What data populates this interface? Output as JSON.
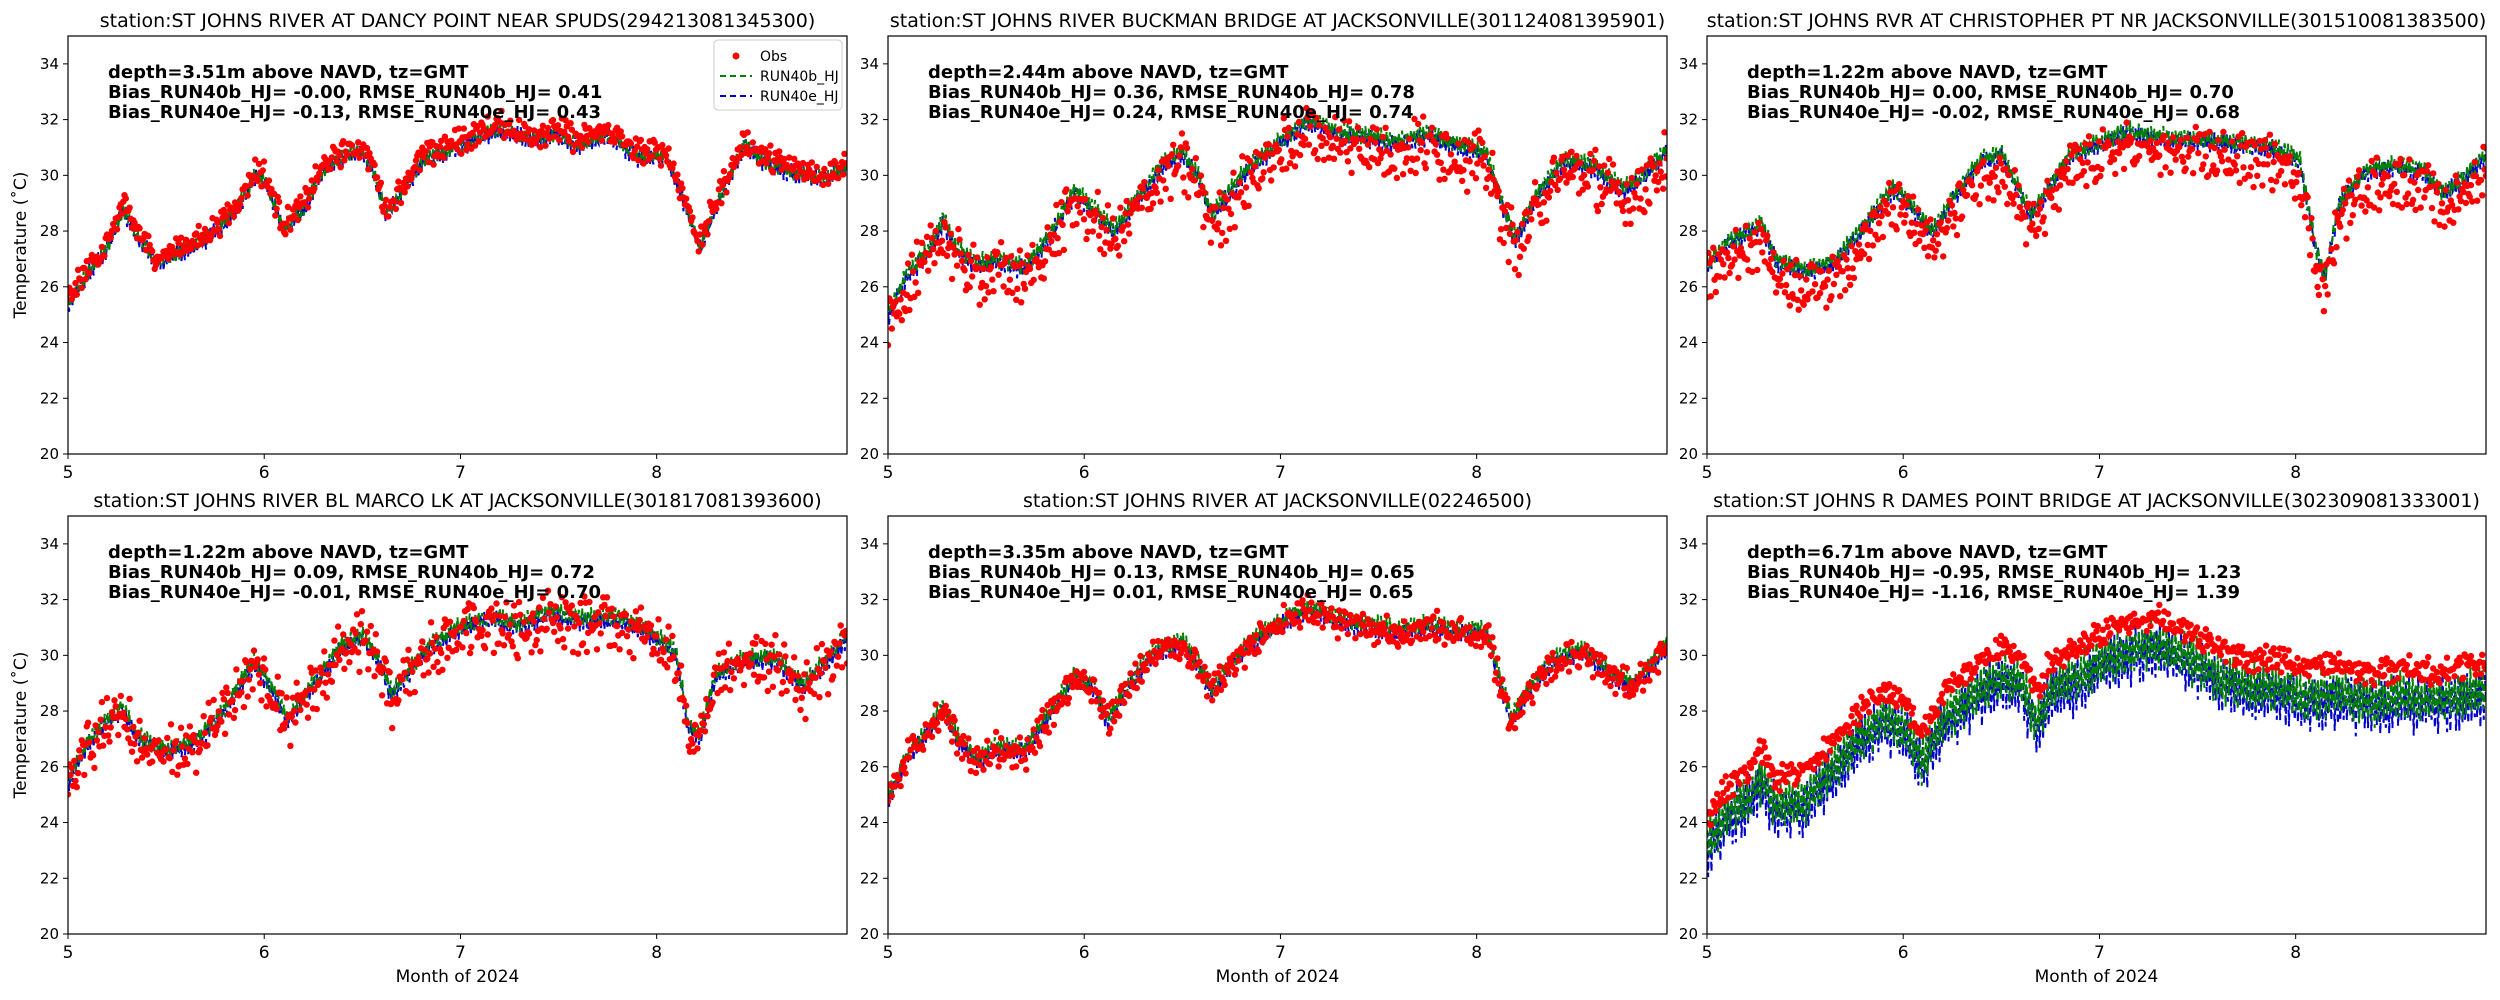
{
  "figure": {
    "legend": {
      "location": "top-right of first panel",
      "items": [
        {
          "label": "Obs",
          "marker": "dot",
          "color": "#ff0000"
        },
        {
          "label": "RUN40b_HJ",
          "marker": "dashed",
          "color": "#008000"
        },
        {
          "label": "RUN40e_HJ",
          "marker": "dashed",
          "color": "#0000cc"
        }
      ]
    }
  },
  "chart_data": [
    {
      "type": "line",
      "title": "station:ST JOHNS RIVER AT DANCY POINT NEAR SPUDS(294213081345300)",
      "xlabel": "",
      "ylabel": "Temperature ($^\\circ$C)",
      "xlim": [
        5,
        8.97
      ],
      "ylim": [
        20,
        35
      ],
      "xticks": [
        "5",
        "6",
        "7",
        "8"
      ],
      "yticks": [
        "20",
        "22",
        "24",
        "26",
        "28",
        "30",
        "32",
        "34"
      ],
      "stats": [
        "depth=3.51m above NAVD, tz=GMT",
        "Bias_RUN40b_HJ= -0.00, RMSE_RUN40b_HJ=  0.41",
        "Bias_RUN40e_HJ= -0.13, RMSE_RUN40e_HJ=  0.43"
      ],
      "knots": [
        [
          5.0,
          25.5
        ],
        [
          5.1,
          26.6
        ],
        [
          5.2,
          27.5
        ],
        [
          5.28,
          28.9
        ],
        [
          5.35,
          28.0
        ],
        [
          5.45,
          27.0
        ],
        [
          5.55,
          27.3
        ],
        [
          5.7,
          27.8
        ],
        [
          5.85,
          28.8
        ],
        [
          5.95,
          30.1
        ],
        [
          6.0,
          30.0
        ],
        [
          6.1,
          28.2
        ],
        [
          6.2,
          28.9
        ],
        [
          6.3,
          30.3
        ],
        [
          6.4,
          30.8
        ],
        [
          6.5,
          31.0
        ],
        [
          6.55,
          30.4
        ],
        [
          6.62,
          28.7
        ],
        [
          6.7,
          29.5
        ],
        [
          6.8,
          30.6
        ],
        [
          6.9,
          30.9
        ],
        [
          7.0,
          31.2
        ],
        [
          7.2,
          31.8
        ],
        [
          7.35,
          31.4
        ],
        [
          7.5,
          31.6
        ],
        [
          7.6,
          31.2
        ],
        [
          7.75,
          31.6
        ],
        [
          7.9,
          30.8
        ],
        [
          8.05,
          30.8
        ],
        [
          8.15,
          29.0
        ],
        [
          8.22,
          27.5
        ],
        [
          8.3,
          29.0
        ],
        [
          8.4,
          30.5
        ],
        [
          8.45,
          31.2
        ],
        [
          8.55,
          30.6
        ],
        [
          8.7,
          30.2
        ],
        [
          8.85,
          30.0
        ],
        [
          8.97,
          30.4
        ]
      ],
      "noise": [
        0.35,
        0.25,
        0.3
      ],
      "offsets": [
        0.05,
        -0.1,
        -0.15
      ]
    },
    {
      "type": "line",
      "title": "station:ST JOHNS RIVER BUCKMAN BRIDGE AT JACKSONVILLE(301124081395901)",
      "xlabel": "",
      "ylabel": "",
      "xlim": [
        5,
        8.97
      ],
      "ylim": [
        20,
        35
      ],
      "xticks": [
        "5",
        "6",
        "7",
        "8"
      ],
      "yticks": [
        "20",
        "22",
        "24",
        "26",
        "28",
        "30",
        "32",
        "34"
      ],
      "stats": [
        "depth=2.44m above NAVD, tz=GMT",
        "Bias_RUN40b_HJ=  0.36, RMSE_RUN40b_HJ=  0.78",
        "Bias_RUN40e_HJ=  0.24, RMSE_RUN40e_HJ=  0.74"
      ],
      "knots": [
        [
          5.0,
          24.8
        ],
        [
          5.1,
          26.3
        ],
        [
          5.2,
          27.0
        ],
        [
          5.28,
          28.2
        ],
        [
          5.35,
          27.2
        ],
        [
          5.45,
          26.6
        ],
        [
          5.55,
          26.8
        ],
        [
          5.7,
          26.5
        ],
        [
          5.8,
          27.4
        ],
        [
          5.95,
          29.2
        ],
        [
          6.05,
          28.6
        ],
        [
          6.15,
          27.8
        ],
        [
          6.25,
          28.8
        ],
        [
          6.4,
          30.2
        ],
        [
          6.5,
          30.6
        ],
        [
          6.58,
          29.8
        ],
        [
          6.65,
          28.4
        ],
        [
          6.72,
          29.0
        ],
        [
          6.85,
          30.2
        ],
        [
          7.0,
          31.0
        ],
        [
          7.15,
          31.8
        ],
        [
          7.3,
          31.3
        ],
        [
          7.45,
          31.2
        ],
        [
          7.6,
          31.0
        ],
        [
          7.75,
          31.3
        ],
        [
          7.9,
          30.9
        ],
        [
          8.05,
          30.6
        ],
        [
          8.13,
          28.8
        ],
        [
          8.2,
          27.5
        ],
        [
          8.3,
          29.0
        ],
        [
          8.45,
          30.4
        ],
        [
          8.6,
          30.1
        ],
        [
          8.75,
          29.3
        ],
        [
          8.85,
          29.8
        ],
        [
          8.97,
          30.7
        ]
      ],
      "noise": [
        0.8,
        0.3,
        0.3
      ],
      "offsets": [
        -0.2,
        0.25,
        0.1
      ]
    },
    {
      "type": "line",
      "title": "station:ST JOHNS RVR AT CHRISTOPHER PT NR JACKSONVILLE(301510081383500)",
      "xlabel": "",
      "ylabel": "",
      "xlim": [
        5,
        8.97
      ],
      "ylim": [
        20,
        35
      ],
      "xticks": [
        "5",
        "6",
        "7",
        "8"
      ],
      "yticks": [
        "20",
        "22",
        "24",
        "26",
        "28",
        "30",
        "32",
        "34"
      ],
      "stats": [
        "depth=1.22m above NAVD, tz=GMT",
        "Bias_RUN40b_HJ=  0.00, RMSE_RUN40b_HJ=  0.70",
        "Bias_RUN40e_HJ= -0.02, RMSE_RUN40e_HJ=  0.68"
      ],
      "knots": [
        [
          5.0,
          26.8
        ],
        [
          5.1,
          27.6
        ],
        [
          5.2,
          28.0
        ],
        [
          5.28,
          28.3
        ],
        [
          5.35,
          27.0
        ],
        [
          5.5,
          26.6
        ],
        [
          5.65,
          26.9
        ],
        [
          5.8,
          28.2
        ],
        [
          5.95,
          29.6
        ],
        [
          6.05,
          28.9
        ],
        [
          6.15,
          28.0
        ],
        [
          6.25,
          29.2
        ],
        [
          6.4,
          30.6
        ],
        [
          6.5,
          30.8
        ],
        [
          6.58,
          29.7
        ],
        [
          6.65,
          28.6
        ],
        [
          6.72,
          29.3
        ],
        [
          6.85,
          30.8
        ],
        [
          7.0,
          31.2
        ],
        [
          7.15,
          31.6
        ],
        [
          7.3,
          31.4
        ],
        [
          7.5,
          31.3
        ],
        [
          7.7,
          31.2
        ],
        [
          7.9,
          31.0
        ],
        [
          8.02,
          30.6
        ],
        [
          8.1,
          27.5
        ],
        [
          8.15,
          26.4
        ],
        [
          8.22,
          29.0
        ],
        [
          8.35,
          30.2
        ],
        [
          8.5,
          30.4
        ],
        [
          8.65,
          30.2
        ],
        [
          8.75,
          29.4
        ],
        [
          8.85,
          29.9
        ],
        [
          8.97,
          30.8
        ]
      ],
      "noise": [
        0.7,
        0.3,
        0.3
      ],
      "offsets": [
        -0.6,
        0.0,
        -0.1
      ]
    },
    {
      "type": "line",
      "title": "station:ST JOHNS RIVER BL MARCO LK AT JACKSONVILLE(301817081393600)",
      "xlabel": "Month of 2024",
      "ylabel": "Temperature ($^\\circ$C)",
      "xlim": [
        5,
        8.97
      ],
      "ylim": [
        20,
        35
      ],
      "xticks": [
        "5",
        "6",
        "7",
        "8"
      ],
      "yticks": [
        "20",
        "22",
        "24",
        "26",
        "28",
        "30",
        "32",
        "34"
      ],
      "stats": [
        "depth=1.22m above NAVD, tz=GMT",
        "Bias_RUN40b_HJ=  0.09, RMSE_RUN40b_HJ=  0.72",
        "Bias_RUN40e_HJ= -0.01, RMSE_RUN40e_HJ=  0.70"
      ],
      "knots": [
        [
          5.0,
          25.4
        ],
        [
          5.1,
          26.8
        ],
        [
          5.2,
          27.6
        ],
        [
          5.28,
          28.0
        ],
        [
          5.35,
          27.0
        ],
        [
          5.5,
          26.5
        ],
        [
          5.65,
          26.8
        ],
        [
          5.8,
          28.0
        ],
        [
          5.95,
          29.7
        ],
        [
          6.05,
          28.6
        ],
        [
          6.12,
          27.6
        ],
        [
          6.22,
          28.6
        ],
        [
          6.4,
          30.3
        ],
        [
          6.5,
          30.6
        ],
        [
          6.58,
          29.8
        ],
        [
          6.65,
          28.5
        ],
        [
          6.72,
          29.2
        ],
        [
          6.85,
          30.3
        ],
        [
          7.0,
          30.9
        ],
        [
          7.15,
          31.3
        ],
        [
          7.3,
          31.0
        ],
        [
          7.45,
          31.5
        ],
        [
          7.6,
          31.2
        ],
        [
          7.8,
          31.3
        ],
        [
          7.95,
          30.8
        ],
        [
          8.1,
          30.0
        ],
        [
          8.16,
          27.4
        ],
        [
          8.22,
          27.0
        ],
        [
          8.3,
          29.2
        ],
        [
          8.45,
          29.8
        ],
        [
          8.6,
          29.8
        ],
        [
          8.75,
          28.8
        ],
        [
          8.85,
          29.6
        ],
        [
          8.97,
          30.6
        ]
      ],
      "noise": [
        0.75,
        0.3,
        0.3
      ],
      "offsets": [
        -0.1,
        0.15,
        0.0
      ]
    },
    {
      "type": "line",
      "title": "station:ST JOHNS RIVER AT JACKSONVILLE(02246500)",
      "xlabel": "Month of 2024",
      "ylabel": "",
      "xlim": [
        5,
        8.97
      ],
      "ylim": [
        20,
        35
      ],
      "xticks": [
        "5",
        "6",
        "7",
        "8"
      ],
      "yticks": [
        "20",
        "22",
        "24",
        "26",
        "28",
        "30",
        "32",
        "34"
      ],
      "stats": [
        "depth=3.35m above NAVD, tz=GMT",
        "Bias_RUN40b_HJ=  0.13, RMSE_RUN40b_HJ=  0.65",
        "Bias_RUN40e_HJ=  0.01, RMSE_RUN40e_HJ=  0.65"
      ],
      "knots": [
        [
          5.0,
          24.8
        ],
        [
          5.1,
          26.3
        ],
        [
          5.2,
          27.2
        ],
        [
          5.28,
          28.0
        ],
        [
          5.35,
          27.0
        ],
        [
          5.45,
          26.2
        ],
        [
          5.55,
          26.6
        ],
        [
          5.7,
          26.5
        ],
        [
          5.8,
          27.6
        ],
        [
          5.95,
          29.2
        ],
        [
          6.05,
          28.7
        ],
        [
          6.12,
          27.6
        ],
        [
          6.22,
          28.8
        ],
        [
          6.35,
          30.0
        ],
        [
          6.5,
          30.4
        ],
        [
          6.58,
          29.6
        ],
        [
          6.65,
          28.6
        ],
        [
          6.72,
          29.4
        ],
        [
          6.85,
          30.4
        ],
        [
          7.0,
          31.1
        ],
        [
          7.15,
          31.6
        ],
        [
          7.3,
          31.2
        ],
        [
          7.45,
          31.0
        ],
        [
          7.6,
          30.8
        ],
        [
          7.75,
          31.0
        ],
        [
          7.9,
          30.8
        ],
        [
          8.05,
          30.8
        ],
        [
          8.12,
          29.0
        ],
        [
          8.18,
          27.6
        ],
        [
          8.25,
          28.6
        ],
        [
          8.4,
          29.8
        ],
        [
          8.55,
          30.1
        ],
        [
          8.7,
          29.2
        ],
        [
          8.8,
          28.9
        ],
        [
          8.9,
          29.7
        ],
        [
          8.97,
          30.3
        ]
      ],
      "noise": [
        0.45,
        0.3,
        0.3
      ],
      "offsets": [
        0.0,
        0.15,
        0.0
      ]
    },
    {
      "type": "line",
      "title": "station:ST JOHNS R DAMES POINT BRIDGE AT JACKSONVILLE(302309081333001)",
      "xlabel": "Month of 2024",
      "ylabel": "",
      "xlim": [
        5,
        8.97
      ],
      "ylim": [
        20,
        35
      ],
      "xticks": [
        "5",
        "6",
        "7",
        "8"
      ],
      "yticks": [
        "20",
        "22",
        "24",
        "26",
        "28",
        "30",
        "32",
        "34"
      ],
      "stats": [
        "depth=6.71m above NAVD, tz=GMT",
        "Bias_RUN40b_HJ= -0.95, RMSE_RUN40b_HJ=  1.23",
        "Bias_RUN40e_HJ= -1.16, RMSE_RUN40e_HJ=  1.39"
      ],
      "knots": [
        [
          5.0,
          24.2
        ],
        [
          5.1,
          25.3
        ],
        [
          5.2,
          25.8
        ],
        [
          5.28,
          26.6
        ],
        [
          5.35,
          25.6
        ],
        [
          5.5,
          25.8
        ],
        [
          5.6,
          26.6
        ],
        [
          5.75,
          27.8
        ],
        [
          5.9,
          28.8
        ],
        [
          6.0,
          28.4
        ],
        [
          6.1,
          27.2
        ],
        [
          6.2,
          28.6
        ],
        [
          6.35,
          29.6
        ],
        [
          6.5,
          30.2
        ],
        [
          6.6,
          30.0
        ],
        [
          6.68,
          28.6
        ],
        [
          6.75,
          29.8
        ],
        [
          6.9,
          30.2
        ],
        [
          7.0,
          30.8
        ],
        [
          7.15,
          31.2
        ],
        [
          7.3,
          31.4
        ],
        [
          7.45,
          30.9
        ],
        [
          7.6,
          30.3
        ],
        [
          7.75,
          29.9
        ],
        [
          7.9,
          29.9
        ],
        [
          8.05,
          29.5
        ],
        [
          8.2,
          29.7
        ],
        [
          8.4,
          29.3
        ],
        [
          8.55,
          29.6
        ],
        [
          8.7,
          29.4
        ],
        [
          8.85,
          29.6
        ],
        [
          8.97,
          29.8
        ]
      ],
      "noise": [
        0.35,
        0.8,
        0.9
      ],
      "offsets": [
        0.0,
        -1.0,
        -1.25
      ]
    }
  ]
}
